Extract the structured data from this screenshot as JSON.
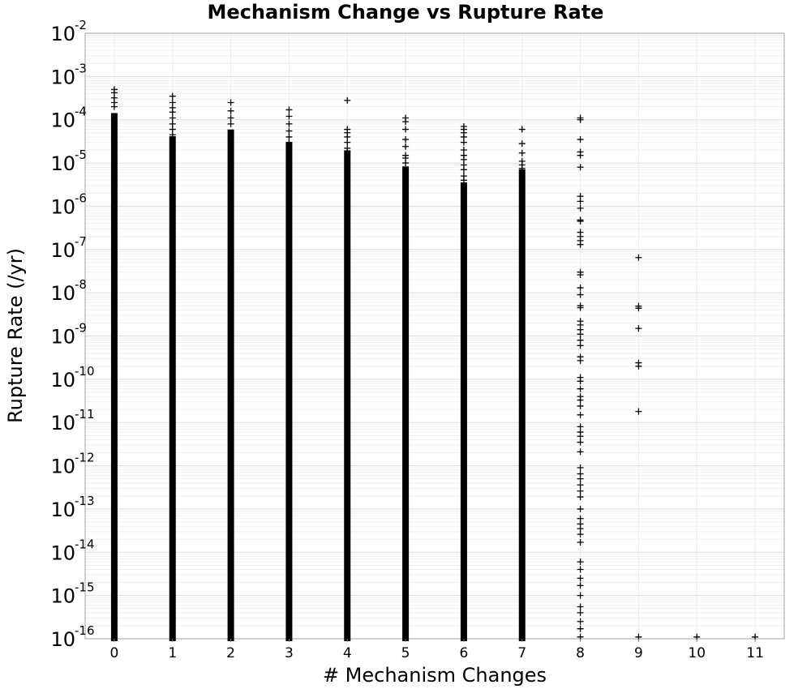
{
  "chart_data": {
    "type": "scatter",
    "title": "Mechanism Change vs Rupture Rate",
    "xlabel": "# Mechanism Changes",
    "ylabel": "Rupture Rate (/yr)",
    "xlim": [
      -0.5,
      11.5
    ],
    "ylim": [
      1e-16,
      0.01
    ],
    "yscale": "log",
    "marker": "+",
    "marker_color": "#000000",
    "grid": true,
    "x_ticks": [
      {
        "value": 0,
        "label": "0"
      },
      {
        "value": 1,
        "label": "1"
      },
      {
        "value": 2,
        "label": "2"
      },
      {
        "value": 3,
        "label": "3"
      },
      {
        "value": 4,
        "label": "4"
      },
      {
        "value": 5,
        "label": "5"
      },
      {
        "value": 6,
        "label": "6"
      },
      {
        "value": 7,
        "label": "7"
      },
      {
        "value": 8,
        "label": "8"
      },
      {
        "value": 9,
        "label": "9"
      },
      {
        "value": 10,
        "label": "10"
      },
      {
        "value": 11,
        "label": "11"
      }
    ],
    "y_ticks": [
      {
        "value": 1e-16,
        "base": "10",
        "exp": "-16"
      },
      {
        "value": 1e-15,
        "base": "10",
        "exp": "-15"
      },
      {
        "value": 1e-14,
        "base": "10",
        "exp": "-14"
      },
      {
        "value": 1e-13,
        "base": "10",
        "exp": "-13"
      },
      {
        "value": 1e-12,
        "base": "10",
        "exp": "-12"
      },
      {
        "value": 1e-11,
        "base": "10",
        "exp": "-11"
      },
      {
        "value": 1e-10,
        "base": "10",
        "exp": "-10"
      },
      {
        "value": 1e-09,
        "base": "10",
        "exp": "-9"
      },
      {
        "value": 1e-08,
        "base": "10",
        "exp": "-8"
      },
      {
        "value": 1e-07,
        "base": "10",
        "exp": "-7"
      },
      {
        "value": 1e-06,
        "base": "10",
        "exp": "-6"
      },
      {
        "value": 1e-05,
        "base": "10",
        "exp": "-5"
      },
      {
        "value": 0.0001,
        "base": "10",
        "exp": "-4"
      },
      {
        "value": 0.001,
        "base": "10",
        "exp": "-3"
      },
      {
        "value": 0.01,
        "base": "10",
        "exp": "-2"
      }
    ],
    "columns": [
      {
        "x": 0,
        "dense_range": [
          1e-16,
          0.00012
        ],
        "outliers": [
          0.0005,
          0.00042,
          0.00032,
          0.00025,
          0.0002
        ]
      },
      {
        "x": 1,
        "dense_range": [
          1e-16,
          3.5e-05
        ],
        "outliers": [
          0.00035,
          0.00025,
          0.00019,
          0.00015,
          0.00011,
          8e-05,
          6e-05,
          4.5e-05
        ]
      },
      {
        "x": 2,
        "dense_range": [
          1e-16,
          5e-05
        ],
        "outliers": [
          0.00025,
          0.00016,
          0.00011,
          8e-05
        ]
      },
      {
        "x": 3,
        "dense_range": [
          1e-16,
          2.5e-05
        ],
        "outliers": [
          0.00017,
          0.00012,
          8e-05,
          5.5e-05,
          4e-05,
          3e-05
        ]
      },
      {
        "x": 4,
        "dense_range": [
          1e-16,
          1.6e-05
        ],
        "outliers": [
          0.00028,
          6e-05,
          5e-05,
          4e-05,
          3e-05,
          2.2e-05,
          1.9e-05
        ]
      },
      {
        "x": 5,
        "dense_range": [
          1e-16,
          7e-06
        ],
        "outliers": [
          0.00011,
          9e-05,
          6e-05,
          3.5e-05,
          2.4e-05,
          1.5e-05,
          1.3e-05,
          1e-05
        ]
      },
      {
        "x": 6,
        "dense_range": [
          1e-16,
          3e-06
        ],
        "outliers": [
          7e-05,
          6e-05,
          5e-05,
          4e-05,
          3e-05,
          2e-05,
          1.5e-05,
          1.2e-05,
          9e-06,
          7e-06,
          5e-06,
          4e-06
        ]
      },
      {
        "x": 7,
        "dense_range": [
          1e-16,
          6e-06
        ],
        "outliers": [
          6e-05,
          2.8e-05,
          1.7e-05,
          1.1e-05,
          9e-06,
          7.5e-06
        ]
      },
      {
        "x": 8,
        "dense_range": null,
        "outliers": [
          0.00011,
          0.0001,
          3.5e-05,
          1.8e-05,
          1.5e-05,
          8e-06,
          1.7e-06,
          1.3e-06,
          9e-07,
          4.8e-07,
          4.5e-07,
          2.5e-07,
          2e-07,
          1.6e-07,
          1.3e-07,
          3e-08,
          2.6e-08,
          1.3e-08,
          9e-09,
          5e-09,
          4.5e-09,
          2.2e-09,
          1.8e-09,
          1.4e-09,
          1.1e-09,
          8e-10,
          6e-10,
          3.3e-10,
          2.7e-10,
          1.1e-10,
          9e-11,
          6e-11,
          4e-11,
          3.3e-11,
          2.4e-11,
          1.5e-11,
          8e-12,
          6e-12,
          4.8e-12,
          3.5e-12,
          2.1e-12,
          9e-13,
          6.5e-13,
          5e-13,
          3.6e-13,
          2.6e-13,
          1.9e-13,
          1e-13,
          6e-14,
          4.5e-14,
          3.5e-14,
          2.6e-14,
          1.7e-14,
          6e-15,
          4e-15,
          2.5e-15,
          1.7e-15,
          1e-15,
          5.5e-16,
          4e-16,
          2.5e-16,
          1.7e-16,
          1.1e-16
        ]
      },
      {
        "x": 9,
        "dense_range": null,
        "outliers": [
          6.5e-08,
          4.9e-09,
          4.4e-09,
          1.5e-09,
          2.4e-10,
          2e-10,
          1.8e-11,
          1.1e-16
        ]
      },
      {
        "x": 10,
        "dense_range": null,
        "outliers": [
          1.1e-16
        ]
      },
      {
        "x": 11,
        "dense_range": null,
        "outliers": [
          1.1e-16
        ]
      }
    ]
  }
}
